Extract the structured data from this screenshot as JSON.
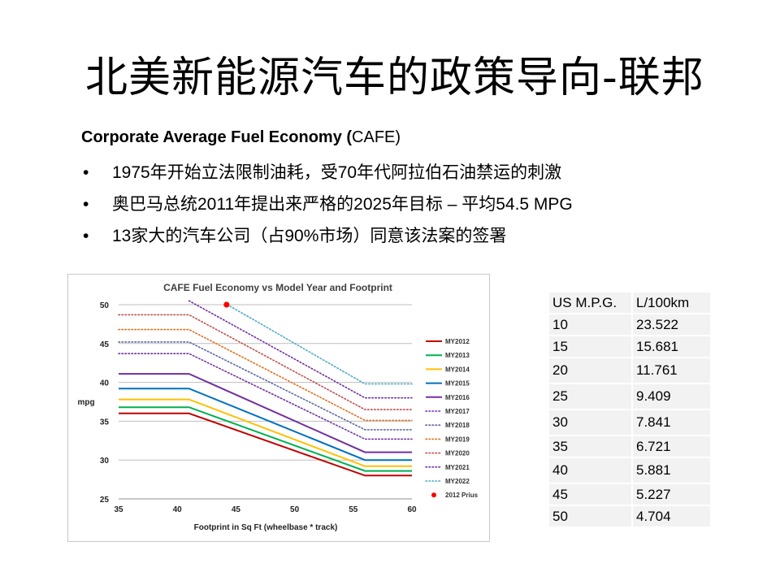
{
  "slide": {
    "title": "北美新能源汽车的政策导向-联邦",
    "subtitle_bold": "Corporate Average Fuel Economy (",
    "subtitle_rest": "CAFE)",
    "bullet_symbol": "•",
    "bullets": [
      "1975年开始立法限制油耗，受70年代阿拉伯石油禁运的刺激",
      "奥巴马总统2011年提出来严格的2025年目标 – 平均54.5 MPG",
      "13家大的汽车公司（占90%市场）同意该法案的签署"
    ]
  },
  "chart_data": {
    "type": "line",
    "title": "CAFE Fuel Economy vs Model Year and Footprint",
    "xlabel": "Footprint in Sq Ft (wheelbase * track)",
    "ylabel": "mpg",
    "xlim": [
      35,
      60
    ],
    "ylim": [
      25,
      50
    ],
    "xticks": [
      35,
      40,
      45,
      50,
      55,
      60
    ],
    "yticks": [
      25,
      30,
      35,
      40,
      45,
      50
    ],
    "grid": true,
    "legend_position": "right",
    "series": [
      {
        "name": "MY2012",
        "color": "#c00000",
        "style": "solid",
        "x": [
          35,
          41,
          56,
          60
        ],
        "y": [
          36.0,
          36.0,
          28.0,
          28.0
        ]
      },
      {
        "name": "MY2013",
        "color": "#00b050",
        "style": "solid",
        "x": [
          35,
          41,
          56,
          60
        ],
        "y": [
          36.8,
          36.8,
          28.6,
          28.6
        ]
      },
      {
        "name": "MY2014",
        "color": "#ffc000",
        "style": "solid",
        "x": [
          35,
          41,
          56,
          60
        ],
        "y": [
          37.8,
          37.8,
          29.2,
          29.2
        ]
      },
      {
        "name": "MY2015",
        "color": "#0070c0",
        "style": "solid",
        "x": [
          35,
          41,
          56,
          60
        ],
        "y": [
          39.2,
          39.2,
          30.0,
          30.0
        ]
      },
      {
        "name": "MY2016",
        "color": "#7030a0",
        "style": "solid",
        "x": [
          35,
          41,
          56,
          60
        ],
        "y": [
          41.1,
          41.1,
          31.0,
          31.0
        ]
      },
      {
        "name": "MY2017",
        "color": "#7030a0",
        "style": "dotted",
        "x": [
          35,
          41,
          56,
          60
        ],
        "y": [
          43.7,
          43.7,
          32.7,
          32.7
        ]
      },
      {
        "name": "MY2018",
        "color": "#5a6aa0",
        "style": "dotted",
        "x": [
          35,
          41,
          56,
          60
        ],
        "y": [
          45.2,
          45.2,
          33.9,
          33.9
        ]
      },
      {
        "name": "MY2019",
        "color": "#e07020",
        "style": "dotted",
        "x": [
          35,
          41,
          56,
          60
        ],
        "y": [
          46.8,
          46.8,
          35.1,
          35.1
        ]
      },
      {
        "name": "MY2020",
        "color": "#c0504d",
        "style": "dotted",
        "x": [
          35,
          41,
          56,
          60
        ],
        "y": [
          48.7,
          48.7,
          36.5,
          36.5
        ]
      },
      {
        "name": "MY2021",
        "color": "#7030a0",
        "style": "dotted",
        "x": [
          41,
          56,
          60
        ],
        "y": [
          50.5,
          38.0,
          38.0
        ]
      },
      {
        "name": "MY2022",
        "color": "#4bacc6",
        "style": "dotted",
        "x": [
          44.5,
          56,
          60
        ],
        "y": [
          49.8,
          39.8,
          39.8
        ]
      }
    ],
    "points": [
      {
        "name": "2012 Prius",
        "color": "#ff0000",
        "x": 44.2,
        "y": 50
      }
    ]
  },
  "conversion_table": {
    "headers": [
      "US M.P.G.",
      "L/100km"
    ],
    "rows": [
      [
        "10",
        "23.522"
      ],
      [
        "15",
        "15.681"
      ],
      [
        "20",
        "11.761"
      ],
      [
        "25",
        "9.409"
      ],
      [
        "30",
        "7.841"
      ],
      [
        "35",
        "6.721"
      ],
      [
        "40",
        "5.881"
      ],
      [
        "45",
        "5.227"
      ],
      [
        "50",
        "4.704"
      ]
    ]
  }
}
